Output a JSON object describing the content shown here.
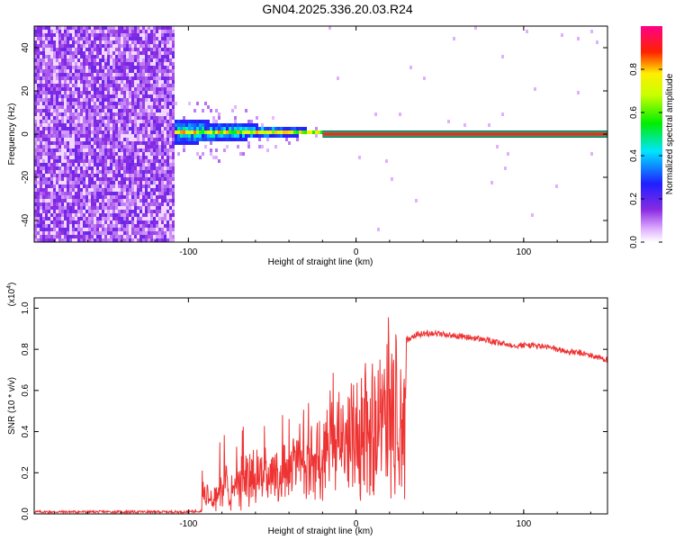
{
  "title": "GN04.2025.336.20.03.R24",
  "chart_data": [
    {
      "type": "heatmap",
      "title": "GN04.2025.336.20.03.R24",
      "xlabel": "Height of straight line (km)",
      "ylabel": "Frequency (Hz)",
      "xlim": [
        -192,
        150
      ],
      "ylim": [
        -50,
        50
      ],
      "x_ticks": [
        -100,
        0,
        100
      ],
      "y_ticks": [
        40,
        20,
        0,
        -20,
        -40
      ],
      "colorbar": {
        "label": "Normalized spectral amplitude",
        "range": [
          0,
          1
        ],
        "ticks": [
          0.0,
          0.2,
          0.4,
          0.6,
          0.8
        ],
        "colormap": "rainbow (purple-blue-cyan-green-yellow-red-magenta)"
      },
      "features": [
        {
          "desc": "broadband noise",
          "x_range": [
            -192,
            -108
          ],
          "y_range": [
            -50,
            50
          ],
          "amplitude": 0.1
        },
        {
          "desc": "spreading signal",
          "x_range": [
            -108,
            -20
          ],
          "center_hz": 1,
          "half_width_hz": [
            6,
            1
          ],
          "amplitude": 0.35
        },
        {
          "desc": "narrow carrier line",
          "x_range": [
            -20,
            150
          ],
          "center_hz": 0,
          "amplitude": 0.95
        }
      ]
    },
    {
      "type": "line",
      "xlabel": "Height of straight line (km)",
      "ylabel": "SNR (10 * v/v)",
      "ylabel_multiplier": "(x10",
      "ylabel_exponent": "4",
      "y_multiplier_label": "(x10^4)",
      "xlim": [
        -192,
        150
      ],
      "ylim": [
        0,
        1.05
      ],
      "x_ticks": [
        -100,
        0,
        100
      ],
      "y_ticks": [
        0.0,
        0.2,
        0.4,
        0.6,
        0.8,
        1.0
      ],
      "series": [
        {
          "color": "#ee3333",
          "x": [
            -192,
            -150,
            -100,
            -92,
            -85,
            -75,
            -65,
            -55,
            -45,
            -35,
            -25,
            -15,
            -5,
            5,
            15,
            25,
            35,
            45,
            55,
            65,
            75,
            85,
            95,
            105,
            115,
            125,
            135,
            150
          ],
          "y": [
            0.01,
            0.01,
            0.01,
            0.015,
            0.05,
            0.12,
            0.18,
            0.22,
            0.25,
            0.3,
            0.38,
            0.42,
            0.5,
            0.6,
            0.72,
            0.82,
            0.87,
            0.88,
            0.87,
            0.86,
            0.85,
            0.83,
            0.82,
            0.82,
            0.81,
            0.79,
            0.78,
            0.75
          ]
        }
      ]
    }
  ]
}
